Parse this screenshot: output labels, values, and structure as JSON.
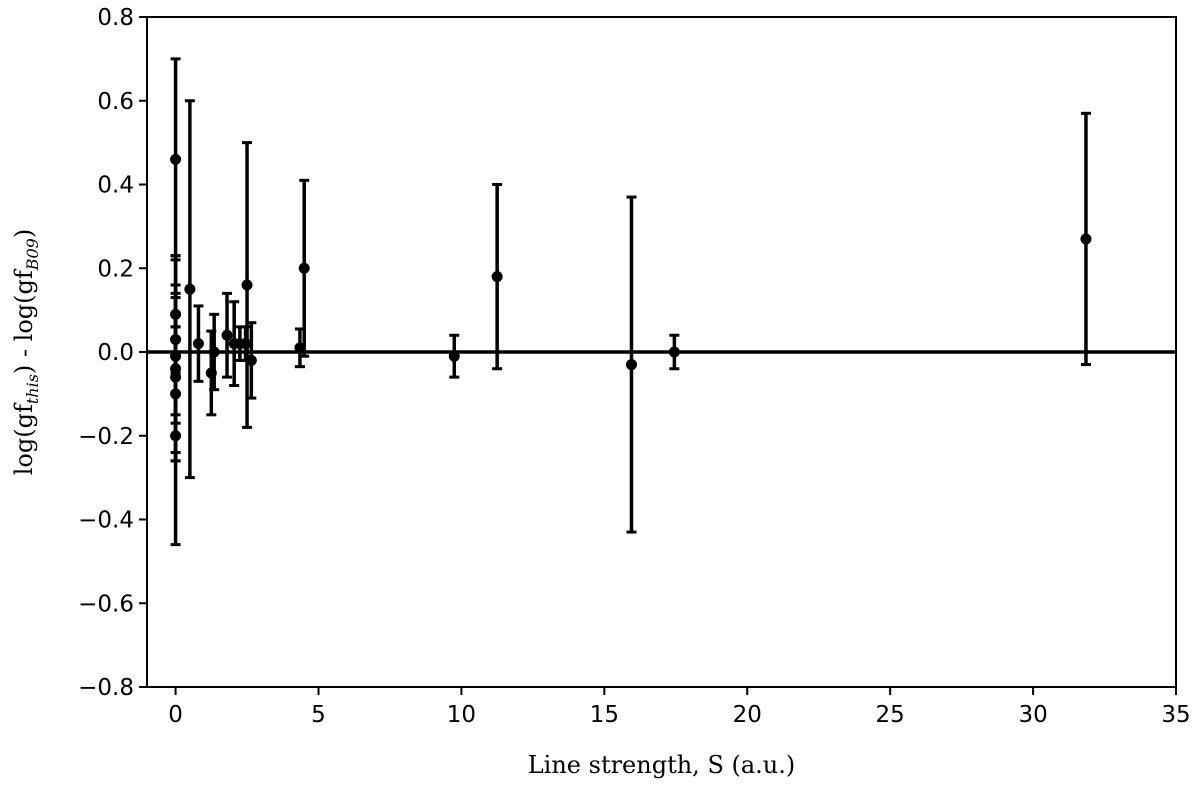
{
  "chart_data": {
    "type": "scatter",
    "title": "",
    "xlabel": "Line strength, S (a.u.)",
    "ylabel": {
      "pre": "log(gf",
      "sub1": "this",
      "mid": ") - log(gf",
      "sub2": "B09",
      "post": ")"
    },
    "xlim": [
      -1,
      35
    ],
    "ylim": [
      -0.8,
      0.8
    ],
    "xticks": [
      0,
      5,
      10,
      15,
      20,
      25,
      30,
      35
    ],
    "yticks": [
      -0.8,
      -0.6,
      -0.4,
      -0.2,
      0.0,
      0.2,
      0.4,
      0.6,
      0.8
    ],
    "xtick_labels": [
      "0",
      "5",
      "10",
      "15",
      "20",
      "25",
      "30",
      "35"
    ],
    "ytick_labels": [
      "−0.8",
      "−0.6",
      "−0.4",
      "−0.2",
      "0.0",
      "0.2",
      "0.4",
      "0.6",
      "0.8"
    ],
    "reference_line": {
      "y": 0
    },
    "grid": false,
    "colors": {
      "points": "#000000",
      "axes": "#000000"
    },
    "points": [
      {
        "x": 0.0,
        "y": 0.46,
        "err": 0.24
      },
      {
        "x": 0.0,
        "y": 0.09,
        "err": 0.14
      },
      {
        "x": 0.0,
        "y": 0.03,
        "err": 0.2
      },
      {
        "x": 0.0,
        "y": -0.01,
        "err": 0.14
      },
      {
        "x": 0.0,
        "y": -0.04,
        "err": 0.2
      },
      {
        "x": 0.0,
        "y": -0.06,
        "err": 0.2
      },
      {
        "x": 0.0,
        "y": -0.1,
        "err": 0.16
      },
      {
        "x": 0.0,
        "y": -0.2,
        "err": 0.26
      },
      {
        "x": 0.5,
        "y": 0.15,
        "err": 0.45
      },
      {
        "x": 0.8,
        "y": 0.02,
        "err": 0.09
      },
      {
        "x": 1.25,
        "y": -0.05,
        "err": 0.1
      },
      {
        "x": 1.35,
        "y": 0.0,
        "err": 0.09
      },
      {
        "x": 1.8,
        "y": 0.04,
        "err": 0.1
      },
      {
        "x": 2.05,
        "y": 0.02,
        "err": 0.1
      },
      {
        "x": 2.25,
        "y": 0.02,
        "err": 0.04
      },
      {
        "x": 2.45,
        "y": 0.02,
        "err": 0.04
      },
      {
        "x": 2.5,
        "y": 0.16,
        "err": 0.34
      },
      {
        "x": 2.65,
        "y": -0.02,
        "err": 0.09
      },
      {
        "x": 4.35,
        "y": 0.01,
        "err": 0.045
      },
      {
        "x": 4.5,
        "y": 0.2,
        "err": 0.21
      },
      {
        "x": 9.75,
        "y": -0.01,
        "err": 0.05
      },
      {
        "x": 11.25,
        "y": 0.18,
        "err": 0.22
      },
      {
        "x": 15.95,
        "y": -0.03,
        "err": 0.4
      },
      {
        "x": 17.45,
        "y": 0.0,
        "err": 0.04
      },
      {
        "x": 31.85,
        "y": 0.27,
        "err": 0.3
      }
    ]
  }
}
